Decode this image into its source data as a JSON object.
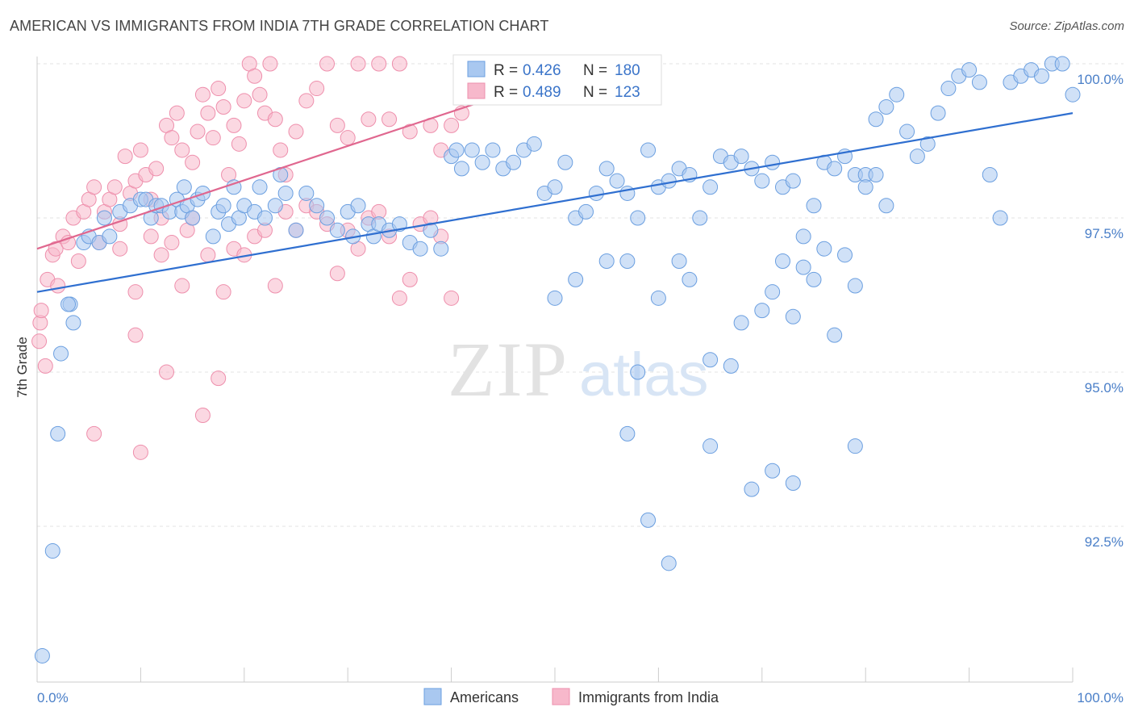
{
  "title": "AMERICAN VS IMMIGRANTS FROM INDIA 7TH GRADE CORRELATION CHART",
  "source": "Source: ZipAtlas.com",
  "watermark": {
    "zip": "ZIP",
    "atlas": "atlas"
  },
  "colors": {
    "americans_fill": "#a9c8f0",
    "americans_stroke": "#6b9fe0",
    "americans_line": "#2f6fd0",
    "india_fill": "#f7b8cb",
    "india_stroke": "#ee8fac",
    "india_line": "#e0678f",
    "tick_label": "#4a7fc8",
    "grid": "#e3e3e3"
  },
  "legend": {
    "r_label": "R =",
    "n_label": "N =",
    "americans_r": "0.426",
    "americans_n": "180",
    "india_r": "0.489",
    "india_n": "123"
  },
  "bottom_legend": {
    "americans": "Americans",
    "india": "Immigrants from India"
  },
  "chart_data": {
    "type": "scatter",
    "title": "AMERICAN VS IMMIGRANTS FROM INDIA 7TH GRADE CORRELATION CHART",
    "xlabel": "",
    "ylabel": "7th Grade",
    "xlim": [
      0,
      100
    ],
    "ylim": [
      90.2,
      100.2
    ],
    "x_tick_labels": [
      "0.0%",
      "100.0%"
    ],
    "y_ticks": [
      92.5,
      95.0,
      97.5,
      100.0
    ],
    "y_tick_labels": [
      "92.5%",
      "95.0%",
      "97.5%",
      "100.0%"
    ],
    "grid": true,
    "legend_position": "top-center",
    "series": [
      {
        "name": "Americans",
        "r": 0.426,
        "n": 180,
        "trend": {
          "x": [
            0,
            100
          ],
          "y": [
            96.3,
            99.2
          ]
        },
        "points": [
          [
            0.5,
            90.4
          ],
          [
            1.5,
            92.1
          ],
          [
            2,
            94
          ],
          [
            2.3,
            95.3
          ],
          [
            3.5,
            95.8
          ],
          [
            3.2,
            96.1
          ],
          [
            3,
            96.1
          ],
          [
            4.5,
            97.1
          ],
          [
            5,
            97.2
          ],
          [
            6,
            97.1
          ],
          [
            6.5,
            97.5
          ],
          [
            7,
            97.2
          ],
          [
            8,
            97.6
          ],
          [
            9,
            97.7
          ],
          [
            10,
            97.8
          ],
          [
            10.5,
            97.8
          ],
          [
            11,
            97.5
          ],
          [
            11.5,
            97.7
          ],
          [
            12,
            97.7
          ],
          [
            12.8,
            97.6
          ],
          [
            13.5,
            97.8
          ],
          [
            14,
            97.6
          ],
          [
            14.5,
            97.7
          ],
          [
            14.2,
            98.0
          ],
          [
            15,
            97.5
          ],
          [
            15.5,
            97.8
          ],
          [
            16,
            97.9
          ],
          [
            17,
            97.2
          ],
          [
            17.5,
            97.6
          ],
          [
            18,
            97.7
          ],
          [
            18.5,
            97.4
          ],
          [
            19,
            98
          ],
          [
            19.5,
            97.5
          ],
          [
            20,
            97.7
          ],
          [
            21,
            97.6
          ],
          [
            21.5,
            98
          ],
          [
            22,
            97.5
          ],
          [
            23,
            97.7
          ],
          [
            23.5,
            98.2
          ],
          [
            24,
            97.9
          ],
          [
            25,
            97.3
          ],
          [
            26,
            97.9
          ],
          [
            27,
            97.7
          ],
          [
            28,
            97.5
          ],
          [
            29,
            97.3
          ],
          [
            30,
            97.6
          ],
          [
            30.5,
            97.2
          ],
          [
            31,
            97.7
          ],
          [
            32,
            97.4
          ],
          [
            32.5,
            97.2
          ],
          [
            33,
            97.4
          ],
          [
            34,
            97.3
          ],
          [
            35,
            97.4
          ],
          [
            36,
            97.1
          ],
          [
            37,
            97.0
          ],
          [
            38,
            97.3
          ],
          [
            39,
            97
          ],
          [
            40,
            98.5
          ],
          [
            40.5,
            98.6
          ],
          [
            41,
            98.3
          ],
          [
            42,
            98.6
          ],
          [
            43,
            98.4
          ],
          [
            44,
            98.6
          ],
          [
            45,
            98.3
          ],
          [
            46,
            98.4
          ],
          [
            47,
            98.6
          ],
          [
            48,
            98.7
          ],
          [
            49,
            97.9
          ],
          [
            50,
            98.0
          ],
          [
            51,
            98.4
          ],
          [
            52,
            97.5
          ],
          [
            53,
            97.6
          ],
          [
            54,
            97.9
          ],
          [
            55,
            98.3
          ],
          [
            56,
            98.1
          ],
          [
            57,
            97.9
          ],
          [
            58,
            97.5
          ],
          [
            59,
            98.6
          ],
          [
            60,
            98.0
          ],
          [
            61,
            98.1
          ],
          [
            62,
            98.3
          ],
          [
            63,
            98.2
          ],
          [
            64,
            97.5
          ],
          [
            65,
            98.0
          ],
          [
            66,
            98.5
          ],
          [
            67,
            98.4
          ],
          [
            68,
            98.5
          ],
          [
            69,
            98.3
          ],
          [
            70,
            98.1
          ],
          [
            71,
            98.4
          ],
          [
            72,
            98.0
          ],
          [
            73,
            98.1
          ],
          [
            74,
            97.2
          ],
          [
            75,
            97.7
          ],
          [
            76,
            98.4
          ],
          [
            77,
            98.3
          ],
          [
            78,
            98.5
          ],
          [
            79,
            98.2
          ],
          [
            80,
            98.2
          ],
          [
            81,
            99.1
          ],
          [
            82,
            99.3
          ],
          [
            83,
            99.5
          ],
          [
            84,
            98.9
          ],
          [
            85,
            98.5
          ],
          [
            86,
            98.7
          ],
          [
            87,
            99.2
          ],
          [
            88,
            99.6
          ],
          [
            89,
            99.8
          ],
          [
            90,
            99.9
          ],
          [
            91,
            99.7
          ],
          [
            92,
            98.2
          ],
          [
            93,
            97.5
          ],
          [
            94,
            99.7
          ],
          [
            95,
            99.8
          ],
          [
            96,
            99.9
          ],
          [
            97,
            99.8
          ],
          [
            98,
            100
          ],
          [
            99,
            100
          ],
          [
            100,
            99.5
          ],
          [
            50,
            96.2
          ],
          [
            52,
            96.5
          ],
          [
            55,
            96.8
          ],
          [
            57,
            96.8
          ],
          [
            58,
            95.0
          ],
          [
            60,
            96.2
          ],
          [
            62,
            96.8
          ],
          [
            63,
            96.5
          ],
          [
            65,
            95.2
          ],
          [
            67,
            95.1
          ],
          [
            68,
            95.8
          ],
          [
            70,
            96.0
          ],
          [
            71,
            96.3
          ],
          [
            72,
            96.8
          ],
          [
            73,
            95.9
          ],
          [
            74,
            96.7
          ],
          [
            75,
            96.5
          ],
          [
            76,
            97.0
          ],
          [
            77,
            95.6
          ],
          [
            78,
            96.9
          ],
          [
            79,
            96.4
          ],
          [
            80,
            98.0
          ],
          [
            81,
            98.2
          ],
          [
            82,
            97.7
          ],
          [
            57,
            94.0
          ],
          [
            59,
            92.6
          ],
          [
            61,
            91.9
          ],
          [
            65,
            93.8
          ],
          [
            69,
            93.1
          ],
          [
            71,
            93.4
          ],
          [
            73,
            93.2
          ],
          [
            79,
            93.8
          ]
        ]
      },
      {
        "name": "Immigrants from India",
        "r": 0.489,
        "n": 123,
        "trend": {
          "x": [
            0,
            54
          ],
          "y": [
            97.0,
            100.0
          ]
        },
        "points": [
          [
            0.2,
            95.5
          ],
          [
            0.3,
            95.8
          ],
          [
            0.4,
            96.0
          ],
          [
            0.8,
            95.1
          ],
          [
            1,
            96.5
          ],
          [
            1.5,
            96.9
          ],
          [
            1.8,
            97.0
          ],
          [
            2,
            96.4
          ],
          [
            2.5,
            97.2
          ],
          [
            3,
            97.1
          ],
          [
            3.5,
            97.5
          ],
          [
            4,
            96.8
          ],
          [
            4.5,
            97.6
          ],
          [
            5,
            97.8
          ],
          [
            5.5,
            98.0
          ],
          [
            6,
            97.1
          ],
          [
            6.5,
            97.6
          ],
          [
            7,
            97.8
          ],
          [
            7.5,
            98.0
          ],
          [
            8,
            97.4
          ],
          [
            8.5,
            98.5
          ],
          [
            9,
            97.9
          ],
          [
            9.5,
            98.1
          ],
          [
            10,
            98.6
          ],
          [
            10.5,
            98.2
          ],
          [
            11,
            97.8
          ],
          [
            11.5,
            98.3
          ],
          [
            12,
            97.5
          ],
          [
            12.5,
            99.0
          ],
          [
            13,
            98.8
          ],
          [
            13.5,
            99.2
          ],
          [
            14,
            98.6
          ],
          [
            14.5,
            97.3
          ],
          [
            15,
            98.4
          ],
          [
            15.5,
            98.9
          ],
          [
            16,
            99.5
          ],
          [
            16.5,
            99.2
          ],
          [
            17,
            98.8
          ],
          [
            17.5,
            99.6
          ],
          [
            18,
            99.3
          ],
          [
            18.5,
            98.2
          ],
          [
            19,
            99.0
          ],
          [
            19.5,
            98.7
          ],
          [
            20,
            99.4
          ],
          [
            20.5,
            100
          ],
          [
            21,
            99.8
          ],
          [
            21.5,
            99.5
          ],
          [
            22,
            99.2
          ],
          [
            22.5,
            100
          ],
          [
            23,
            99.1
          ],
          [
            23.5,
            98.6
          ],
          [
            24,
            98.2
          ],
          [
            25,
            98.9
          ],
          [
            26,
            99.4
          ],
          [
            27,
            99.6
          ],
          [
            28,
            100
          ],
          [
            29,
            99.0
          ],
          [
            30,
            98.8
          ],
          [
            31,
            100
          ],
          [
            32,
            99.1
          ],
          [
            33,
            100
          ],
          [
            34,
            99.1
          ],
          [
            35,
            100
          ],
          [
            36,
            98.9
          ],
          [
            37,
            97.4
          ],
          [
            38,
            99.0
          ],
          [
            39,
            98.6
          ],
          [
            40,
            99.0
          ],
          [
            41,
            99.2
          ],
          [
            42,
            100
          ],
          [
            43,
            100
          ],
          [
            44,
            100
          ],
          [
            45,
            100
          ],
          [
            46,
            100
          ],
          [
            47,
            100
          ],
          [
            48,
            100
          ],
          [
            49,
            100
          ],
          [
            50,
            100
          ],
          [
            51,
            100
          ],
          [
            52,
            100
          ],
          [
            53,
            100
          ],
          [
            54,
            100
          ],
          [
            9.5,
            95.6
          ],
          [
            12.5,
            95.0
          ],
          [
            10,
            93.7
          ],
          [
            5.5,
            94.0
          ],
          [
            16,
            94.3
          ],
          [
            17.5,
            94.9
          ],
          [
            18,
            96.3
          ],
          [
            14,
            96.4
          ],
          [
            23,
            96.4
          ],
          [
            29,
            96.6
          ],
          [
            9.5,
            96.3
          ],
          [
            11,
            97.2
          ],
          [
            8,
            97.0
          ],
          [
            12,
            96.9
          ],
          [
            13,
            97.1
          ],
          [
            15,
            97.5
          ],
          [
            16.5,
            96.9
          ],
          [
            19,
            97.0
          ],
          [
            20,
            96.9
          ],
          [
            21,
            97.2
          ],
          [
            22,
            97.3
          ],
          [
            24,
            97.6
          ],
          [
            25,
            97.3
          ],
          [
            26,
            97.7
          ],
          [
            27,
            97.6
          ],
          [
            28,
            97.4
          ],
          [
            30,
            97.3
          ],
          [
            31,
            97.0
          ],
          [
            32,
            97.5
          ],
          [
            33,
            97.6
          ],
          [
            34,
            97.2
          ],
          [
            35,
            96.2
          ],
          [
            36,
            96.5
          ],
          [
            38,
            97.5
          ],
          [
            39,
            97.2
          ],
          [
            40,
            96.2
          ]
        ]
      }
    ]
  }
}
